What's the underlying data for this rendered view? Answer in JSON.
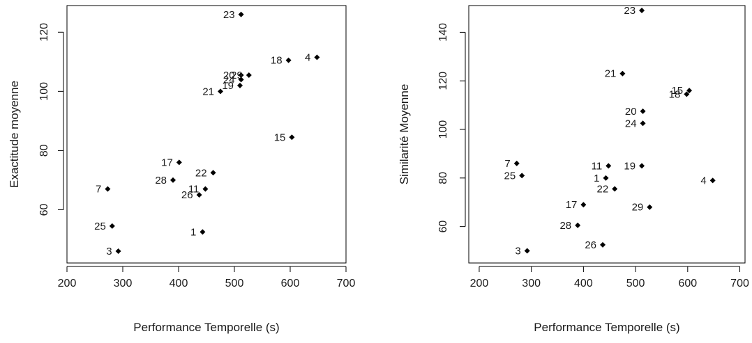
{
  "chart_data": [
    {
      "type": "scatter",
      "title": "",
      "xlabel": "Performance Temporelle (s)",
      "ylabel": "Exactitude moyenne",
      "xlim": [
        200,
        700
      ],
      "ylim": [
        42,
        129
      ],
      "xticks": [
        200,
        300,
        400,
        500,
        600,
        700
      ],
      "yticks": [
        60,
        80,
        100,
        120
      ],
      "grid": false,
      "points": [
        {
          "label": "23",
          "x": 512,
          "y": 126
        },
        {
          "label": "4",
          "x": 648,
          "y": 111.5
        },
        {
          "label": "18",
          "x": 597,
          "y": 110.5
        },
        {
          "label": "20",
          "x": 512,
          "y": 105.5
        },
        {
          "label": "29",
          "x": 526,
          "y": 105.5
        },
        {
          "label": "24",
          "x": 512,
          "y": 104
        },
        {
          "label": "19",
          "x": 510,
          "y": 102
        },
        {
          "label": "21",
          "x": 475,
          "y": 100
        },
        {
          "label": "15",
          "x": 603,
          "y": 84.5
        },
        {
          "label": "17",
          "x": 401,
          "y": 76
        },
        {
          "label": "22",
          "x": 462,
          "y": 72.5
        },
        {
          "label": "28",
          "x": 390,
          "y": 70
        },
        {
          "label": "7",
          "x": 273,
          "y": 67
        },
        {
          "label": "11",
          "x": 448,
          "y": 67
        },
        {
          "label": "26",
          "x": 437,
          "y": 65
        },
        {
          "label": "25",
          "x": 281,
          "y": 54.5
        },
        {
          "label": "1",
          "x": 443,
          "y": 52.5
        },
        {
          "label": "3",
          "x": 292,
          "y": 46
        }
      ]
    },
    {
      "type": "scatter",
      "title": "",
      "xlabel": "Performance Temporelle (s)",
      "ylabel": "Similarité Moyenne",
      "xlim": [
        180,
        710
      ],
      "ylim": [
        45,
        151
      ],
      "xticks": [
        200,
        300,
        400,
        500,
        600,
        700
      ],
      "yticks": [
        60,
        80,
        100,
        120,
        140
      ],
      "grid": false,
      "points": [
        {
          "label": "23",
          "x": 512,
          "y": 149
        },
        {
          "label": "21",
          "x": 475,
          "y": 123
        },
        {
          "label": "15",
          "x": 603,
          "y": 116
        },
        {
          "label": "18",
          "x": 598,
          "y": 114.5
        },
        {
          "label": "20",
          "x": 514,
          "y": 107.5
        },
        {
          "label": "24",
          "x": 514,
          "y": 102.5
        },
        {
          "label": "7",
          "x": 272,
          "y": 86
        },
        {
          "label": "11",
          "x": 448,
          "y": 85
        },
        {
          "label": "19",
          "x": 512,
          "y": 85
        },
        {
          "label": "25",
          "x": 282,
          "y": 81
        },
        {
          "label": "1",
          "x": 443,
          "y": 80
        },
        {
          "label": "4",
          "x": 648,
          "y": 79
        },
        {
          "label": "22",
          "x": 460,
          "y": 75.5
        },
        {
          "label": "17",
          "x": 400,
          "y": 69
        },
        {
          "label": "29",
          "x": 527,
          "y": 68
        },
        {
          "label": "28",
          "x": 389,
          "y": 60.5
        },
        {
          "label": "26",
          "x": 437,
          "y": 52.5
        },
        {
          "label": "3",
          "x": 292,
          "y": 50
        }
      ]
    }
  ]
}
